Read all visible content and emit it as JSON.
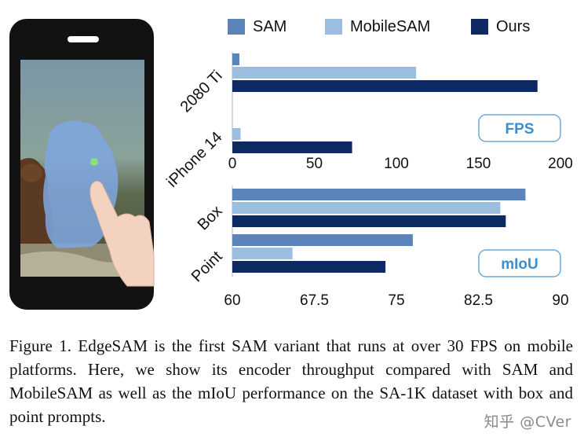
{
  "legend": {
    "items": [
      {
        "name": "SAM",
        "color": "#5b84ba"
      },
      {
        "name": "MobileSAM",
        "color": "#9bbde0"
      },
      {
        "name": "Ours",
        "color": "#0e2a63"
      }
    ]
  },
  "chart_data": [
    {
      "type": "bar",
      "orientation": "horizontal",
      "metric_box": "FPS",
      "categories": [
        "2080 Ti",
        "iPhone 14"
      ],
      "series": [
        {
          "name": "SAM",
          "values": [
            4.3,
            0.0
          ]
        },
        {
          "name": "MobileSAM",
          "values": [
            112,
            5
          ]
        },
        {
          "name": "Ours",
          "values": [
            186,
            73
          ]
        }
      ],
      "xlim": [
        0,
        200
      ],
      "xticks": [
        "0",
        "50",
        "100",
        "150",
        "200"
      ],
      "xtick_values": [
        0,
        50,
        100,
        150,
        200
      ]
    },
    {
      "type": "bar",
      "orientation": "horizontal",
      "metric_box": "mIoU",
      "categories": [
        "Box",
        "Point"
      ],
      "series": [
        {
          "name": "SAM",
          "values": [
            86.8,
            76.5
          ]
        },
        {
          "name": "MobileSAM",
          "values": [
            84.5,
            65.5
          ]
        },
        {
          "name": "Ours",
          "values": [
            85.0,
            74.0
          ]
        }
      ],
      "xlim": [
        60,
        90
      ],
      "xticks": [
        "60",
        "67.5",
        "75",
        "82.5",
        "90"
      ],
      "xtick_values": [
        60,
        67.5,
        75,
        82.5,
        90
      ]
    }
  ],
  "caption": {
    "text": "Figure 1. EdgeSAM is the first SAM variant that runs at over 30 FPS on mobile platforms. Here, we show its encoder throughput compared with SAM and MobileSAM as well as the mIoU performance on the SA-1K dataset with box and point prompts."
  },
  "watermark": {
    "text": "知乎 @CVer"
  }
}
